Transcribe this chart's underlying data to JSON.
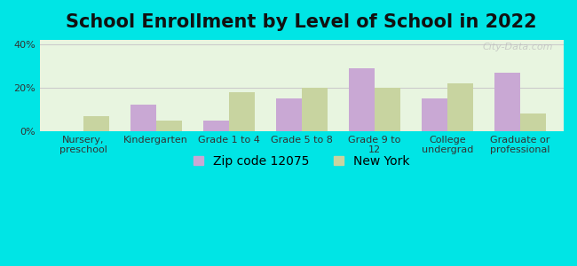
{
  "title": "School Enrollment by Level of School in 2022",
  "categories": [
    "Nursery,\npreschool",
    "Kindergarten",
    "Grade 1 to 4",
    "Grade 5 to 8",
    "Grade 9 to\n12",
    "College\nundergrad",
    "Graduate or\nprofessional"
  ],
  "zip_values": [
    0,
    12,
    5,
    15,
    29,
    15,
    27
  ],
  "ny_values": [
    7,
    5,
    18,
    20,
    20,
    22,
    8
  ],
  "zip_color": "#c9a8d4",
  "ny_color": "#c8d4a0",
  "background_color": "#00e5e5",
  "plot_bg_color": "#e8f5e0",
  "title_fontsize": 15,
  "tick_fontsize": 8,
  "legend_fontsize": 10,
  "bar_width": 0.35,
  "ylim": [
    0,
    42
  ],
  "yticks": [
    0,
    20,
    40
  ],
  "ytick_labels": [
    "0%",
    "20%",
    "40%"
  ],
  "watermark": "City-Data.com",
  "zip_label": "Zip code 12075",
  "ny_label": "New York"
}
